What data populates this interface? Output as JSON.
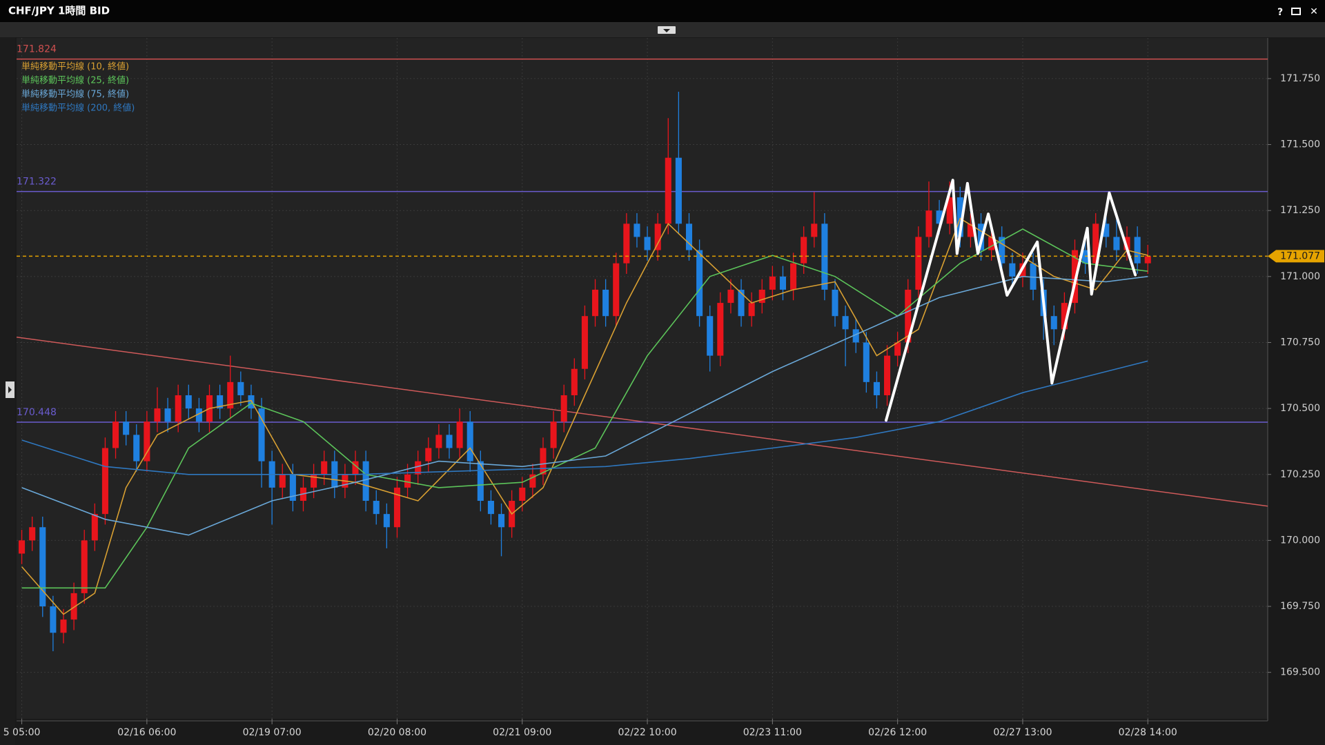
{
  "window": {
    "help": "?",
    "close": "✕"
  },
  "chart_data": {
    "type": "candlestick",
    "title": "CHF/JPY 1時間 BID",
    "up_color": "#e8151c",
    "down_color": "#1f80e0",
    "xlim": [
      -0.5,
      119.5
    ],
    "xticks": [
      {
        "value": 0,
        "label": "5 05:00"
      },
      {
        "value": 12,
        "label": "02/16 06:00"
      },
      {
        "value": 24,
        "label": "02/19 07:00"
      },
      {
        "value": 36,
        "label": "02/20 08:00"
      },
      {
        "value": 48,
        "label": "02/21 09:00"
      },
      {
        "value": 60,
        "label": "02/22 10:00"
      },
      {
        "value": 72,
        "label": "02/23 11:00"
      },
      {
        "value": 84,
        "label": "02/26 12:00"
      },
      {
        "value": 96,
        "label": "02/27 13:00"
      },
      {
        "value": 108,
        "label": "02/28 14:00"
      }
    ],
    "ylim": [
      169.324,
      171.904
    ],
    "yticks": [
      {
        "value": 169.5,
        "label": "169.500"
      },
      {
        "value": 169.75,
        "label": "169.750"
      },
      {
        "value": 170,
        "label": "170.000"
      },
      {
        "value": 170.25,
        "label": "170.250"
      },
      {
        "value": 170.5,
        "label": "170.500"
      },
      {
        "value": 170.75,
        "label": "170.750"
      },
      {
        "value": 171,
        "label": "171.000"
      },
      {
        "value": 171.25,
        "label": "171.250"
      },
      {
        "value": 171.5,
        "label": "171.500"
      },
      {
        "value": 171.75,
        "label": "171.750"
      }
    ],
    "grid": true,
    "open": [
      169.95,
      170.0,
      170.05,
      169.75,
      169.65,
      169.7,
      169.8,
      170.0,
      170.1,
      170.35,
      170.45,
      170.4,
      170.3,
      170.45,
      170.5,
      170.45,
      170.55,
      170.5,
      170.45,
      170.55,
      170.5,
      170.6,
      170.55,
      170.5,
      170.3,
      170.2,
      170.25,
      170.15,
      170.2,
      170.25,
      170.3,
      170.2,
      170.25,
      170.3,
      170.15,
      170.1,
      170.05,
      170.2,
      170.25,
      170.3,
      170.35,
      170.4,
      170.35,
      170.45,
      170.3,
      170.15,
      170.1,
      170.05,
      170.15,
      170.2,
      170.25,
      170.35,
      170.45,
      170.55,
      170.65,
      170.85,
      170.95,
      170.85,
      171.05,
      171.2,
      171.15,
      171.1,
      171.2,
      171.45,
      171.2,
      171.1,
      170.85,
      170.7,
      170.9,
      170.95,
      170.85,
      170.9,
      170.95,
      171.0,
      170.95,
      171.05,
      171.15,
      171.2,
      170.95,
      170.85,
      170.8,
      170.75,
      170.6,
      170.55,
      170.7,
      170.75,
      170.95,
      171.15,
      171.25,
      171.2,
      171.3,
      171.15,
      171.2,
      171.1,
      171.15,
      171.05,
      171.0,
      171.05,
      170.95,
      170.85,
      170.8,
      170.9,
      171.1,
      171.05,
      171.2,
      171.15,
      171.1,
      171.15,
      171.05
    ],
    "high": [
      170.04,
      170.09,
      170.09,
      169.79,
      169.74,
      169.84,
      170.04,
      170.14,
      170.39,
      170.49,
      170.49,
      170.44,
      170.49,
      170.58,
      170.54,
      170.59,
      170.59,
      170.54,
      170.59,
      170.59,
      170.7,
      170.64,
      170.59,
      170.54,
      170.34,
      170.29,
      170.29,
      170.24,
      170.29,
      170.34,
      170.34,
      170.29,
      170.34,
      170.34,
      170.19,
      170.14,
      170.24,
      170.29,
      170.34,
      170.39,
      170.44,
      170.44,
      170.5,
      170.49,
      170.34,
      170.19,
      170.14,
      170.19,
      170.24,
      170.29,
      170.39,
      170.49,
      170.59,
      170.69,
      170.89,
      170.99,
      170.99,
      171.09,
      171.24,
      171.24,
      171.19,
      171.24,
      171.6,
      171.7,
      171.24,
      171.14,
      170.89,
      170.94,
      170.99,
      170.99,
      170.94,
      170.99,
      171.04,
      171.04,
      171.09,
      171.19,
      171.32,
      171.24,
      170.99,
      170.89,
      170.84,
      170.79,
      170.64,
      170.74,
      170.79,
      170.99,
      171.19,
      171.36,
      171.29,
      171.36,
      171.34,
      171.24,
      171.24,
      171.19,
      171.19,
      171.09,
      171.09,
      171.09,
      170.99,
      170.89,
      170.94,
      171.14,
      171.14,
      171.24,
      171.24,
      171.24,
      171.19,
      171.19,
      171.12
    ],
    "low": [
      169.91,
      169.96,
      169.71,
      169.58,
      169.61,
      169.66,
      169.76,
      169.96,
      170.06,
      170.31,
      170.36,
      170.26,
      170.26,
      170.41,
      170.41,
      170.41,
      170.46,
      170.41,
      170.41,
      170.46,
      170.46,
      170.51,
      170.46,
      170.2,
      170.06,
      170.16,
      170.11,
      170.11,
      170.16,
      170.21,
      170.16,
      170.16,
      170.21,
      170.11,
      170.06,
      169.97,
      170.01,
      170.16,
      170.21,
      170.26,
      170.31,
      170.31,
      170.31,
      170.26,
      170.11,
      170.06,
      169.94,
      170.01,
      170.11,
      170.16,
      170.21,
      170.31,
      170.41,
      170.51,
      170.61,
      170.81,
      170.81,
      170.81,
      171.01,
      171.11,
      171.06,
      171.06,
      171.16,
      171.16,
      171.06,
      170.81,
      170.64,
      170.66,
      170.86,
      170.81,
      170.81,
      170.86,
      170.91,
      170.91,
      170.91,
      171.01,
      171.11,
      170.91,
      170.81,
      170.66,
      170.71,
      170.56,
      170.5,
      170.51,
      170.66,
      170.71,
      170.91,
      171.11,
      171.16,
      171.16,
      171.11,
      171.11,
      171.06,
      171.06,
      171.01,
      170.96,
      170.96,
      170.91,
      170.76,
      170.74,
      170.76,
      170.86,
      171.01,
      171.01,
      171.11,
      171.06,
      171.06,
      171.01,
      171.01
    ],
    "close": [
      170.0,
      170.05,
      169.75,
      169.65,
      169.7,
      169.8,
      170.0,
      170.1,
      170.35,
      170.45,
      170.4,
      170.3,
      170.45,
      170.5,
      170.45,
      170.55,
      170.5,
      170.45,
      170.55,
      170.5,
      170.6,
      170.55,
      170.5,
      170.3,
      170.2,
      170.25,
      170.15,
      170.2,
      170.25,
      170.3,
      170.2,
      170.25,
      170.3,
      170.15,
      170.1,
      170.05,
      170.2,
      170.25,
      170.3,
      170.35,
      170.4,
      170.35,
      170.45,
      170.3,
      170.15,
      170.1,
      170.05,
      170.15,
      170.2,
      170.25,
      170.35,
      170.45,
      170.55,
      170.65,
      170.85,
      170.95,
      170.85,
      171.05,
      171.2,
      171.15,
      171.1,
      171.2,
      171.45,
      171.2,
      171.1,
      170.85,
      170.7,
      170.9,
      170.95,
      170.85,
      170.9,
      170.95,
      171.0,
      170.95,
      171.05,
      171.15,
      171.2,
      170.95,
      170.85,
      170.8,
      170.75,
      170.6,
      170.55,
      170.7,
      170.75,
      170.95,
      171.15,
      171.25,
      171.2,
      171.3,
      171.15,
      171.2,
      171.1,
      171.15,
      171.05,
      171.0,
      171.05,
      170.95,
      170.85,
      170.8,
      170.9,
      171.1,
      171.05,
      171.2,
      171.15,
      171.1,
      171.15,
      171.05,
      171.077
    ],
    "series": [
      {
        "name": "単純移動平均線 (10, 終値)",
        "color": "#d9a032",
        "x": [
          0,
          4,
          7,
          10,
          13,
          18,
          22,
          26,
          32,
          38,
          43,
          47,
          50,
          54,
          58,
          62,
          66,
          70,
          74,
          78,
          82,
          86,
          90,
          95,
          99,
          103,
          106,
          108
        ],
        "values": [
          169.9,
          169.72,
          169.8,
          170.2,
          170.4,
          170.5,
          170.53,
          170.25,
          170.22,
          170.15,
          170.35,
          170.1,
          170.2,
          170.55,
          170.9,
          171.2,
          171.05,
          170.9,
          170.95,
          170.98,
          170.7,
          170.8,
          171.22,
          171.1,
          171.0,
          170.95,
          171.1,
          171.08
        ]
      },
      {
        "name": "単純移動平均線 (25, 終値)",
        "color": "#5cc45a",
        "x": [
          0,
          8,
          12,
          16,
          22,
          27,
          33,
          40,
          48,
          55,
          60,
          66,
          72,
          78,
          84,
          90,
          96,
          102,
          108
        ],
        "values": [
          169.82,
          169.82,
          170.05,
          170.35,
          170.52,
          170.45,
          170.25,
          170.2,
          170.22,
          170.35,
          170.7,
          171.0,
          171.08,
          171.0,
          170.85,
          171.05,
          171.18,
          171.05,
          171.02
        ]
      },
      {
        "name": "単純移動平均線 (75, 終値)",
        "color": "#6aa8d8",
        "x": [
          0,
          8,
          16,
          24,
          32,
          40,
          48,
          56,
          64,
          72,
          80,
          88,
          96,
          104,
          108
        ],
        "values": [
          170.2,
          170.08,
          170.02,
          170.15,
          170.22,
          170.3,
          170.28,
          170.32,
          170.48,
          170.64,
          170.78,
          170.92,
          171.0,
          170.98,
          171.0
        ]
      },
      {
        "name": "単純移動平均線 (200, 終値)",
        "color": "#2f78c0",
        "x": [
          0,
          8,
          16,
          24,
          32,
          40,
          48,
          56,
          64,
          72,
          80,
          88,
          96,
          104,
          108
        ],
        "values": [
          170.38,
          170.28,
          170.25,
          170.25,
          170.25,
          170.26,
          170.27,
          170.28,
          170.31,
          170.35,
          170.39,
          170.45,
          170.56,
          170.64,
          170.68
        ]
      }
    ],
    "hlines": [
      {
        "value": 171.824,
        "color": "#d05050"
      },
      {
        "value": 171.322,
        "color": "#6a5ccf"
      },
      {
        "value": 170.448,
        "color": "#6a5ccf"
      }
    ],
    "last": 171.077,
    "last_color": "#e6a400",
    "trendline": {
      "color": "#d05a5a",
      "x": [
        -0.5,
        119.5
      ],
      "values": [
        170.77,
        170.13
      ]
    },
    "drawing": {
      "color": "#ffffff",
      "x": [
        82.9,
        89.3,
        89.7,
        90.7,
        91.7,
        92.7,
        94.5,
        97.4,
        98.8,
        102.2,
        102.6,
        104.3,
        106.8
      ],
      "values": [
        170.455,
        171.365,
        171.087,
        171.353,
        171.087,
        171.237,
        170.929,
        171.131,
        170.596,
        171.183,
        170.933,
        171.317,
        171.006
      ]
    }
  }
}
